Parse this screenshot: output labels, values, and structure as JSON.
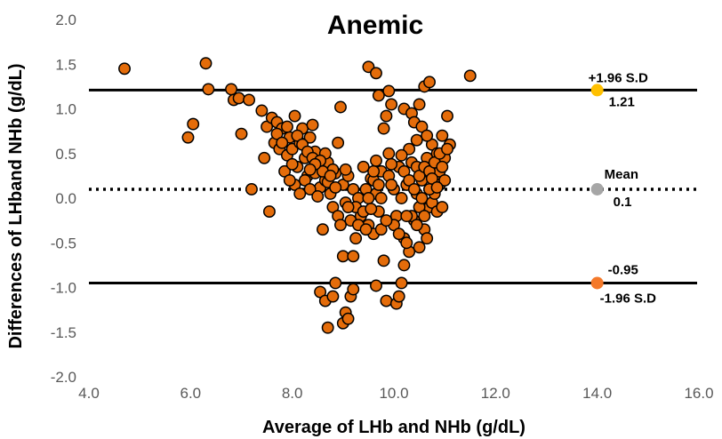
{
  "chart_data": {
    "type": "scatter",
    "title": "Anemic",
    "xlabel": "Average of LHb and NHb (g/dL)",
    "ylabel": "Differences of LHband NHb (g/dL)",
    "xlim": [
      4.0,
      16.0
    ],
    "ylim": [
      -2.0,
      2.0
    ],
    "xticks": [
      "4.0",
      "6.0",
      "8.0",
      "10.0",
      "12.0",
      "14.0",
      "16.0"
    ],
    "yticks": [
      "2.0",
      "1.5",
      "1.0",
      "0.5",
      "0.0",
      "-0.5",
      "-1.0",
      "-1.5",
      "-2.0"
    ],
    "grid": false,
    "marker_color": "#E46C0A",
    "marker_edge_color": "#000000",
    "reference_lines": [
      {
        "id": "upper",
        "y": 1.21,
        "style": "solid",
        "x_end": 14.0,
        "marker_color": "#FFC000",
        "label": "+1.96 S.D",
        "value_label": "1.21"
      },
      {
        "id": "mean",
        "y": 0.1,
        "style": "dotted",
        "x_end": 14.0,
        "marker_color": "#A6A6A6",
        "label": "Mean",
        "value_label": "0.1"
      },
      {
        "id": "lower",
        "y": -0.95,
        "style": "solid",
        "x_end": 14.0,
        "marker_color": "#F4792A",
        "label": "-1.96 S.D",
        "value_label": "-0.95"
      }
    ],
    "points": [
      [
        4.7,
        1.45
      ],
      [
        5.95,
        0.68
      ],
      [
        6.05,
        0.83
      ],
      [
        6.3,
        1.51
      ],
      [
        6.35,
        1.22
      ],
      [
        6.8,
        1.22
      ],
      [
        6.85,
        1.1
      ],
      [
        6.95,
        1.12
      ],
      [
        7.0,
        0.72
      ],
      [
        7.15,
        1.1
      ],
      [
        7.2,
        0.1
      ],
      [
        7.4,
        0.98
      ],
      [
        7.45,
        0.45
      ],
      [
        7.5,
        0.8
      ],
      [
        7.55,
        -0.15
      ],
      [
        7.6,
        0.9
      ],
      [
        7.65,
        0.62
      ],
      [
        7.7,
        0.85
      ],
      [
        7.75,
        0.55
      ],
      [
        7.8,
        0.78
      ],
      [
        7.85,
        0.3
      ],
      [
        7.9,
        0.48
      ],
      [
        7.95,
        0.68
      ],
      [
        8.0,
        0.55
      ],
      [
        8.05,
        0.92
      ],
      [
        8.1,
        0.35
      ],
      [
        8.15,
        0.62
      ],
      [
        8.2,
        0.78
      ],
      [
        8.25,
        0.45
      ],
      [
        8.3,
        0.25
      ],
      [
        8.35,
        0.68
      ],
      [
        8.4,
        0.82
      ],
      [
        8.45,
        0.52
      ],
      [
        8.5,
        0.35
      ],
      [
        8.55,
        0.12
      ],
      [
        8.6,
        -0.35
      ],
      [
        8.65,
        0.2
      ],
      [
        8.7,
        0.4
      ],
      [
        8.75,
        0.05
      ],
      [
        8.8,
        -0.1
      ],
      [
        8.85,
        0.28
      ],
      [
        8.9,
        0.62
      ],
      [
        8.95,
        1.02
      ],
      [
        9.0,
        0.15
      ],
      [
        9.05,
        -0.05
      ],
      [
        9.1,
        0.25
      ],
      [
        9.15,
        -0.25
      ],
      [
        9.2,
        0.1
      ],
      [
        9.25,
        -0.45
      ],
      [
        9.3,
        0.0
      ],
      [
        9.35,
        -0.2
      ],
      [
        9.4,
        0.35
      ],
      [
        9.45,
        0.1
      ],
      [
        9.5,
        -0.3
      ],
      [
        9.55,
        0.22
      ],
      [
        9.6,
        -0.4
      ],
      [
        9.65,
        0.05
      ],
      [
        9.7,
        -0.15
      ],
      [
        9.75,
        0.3
      ],
      [
        9.8,
        0.78
      ],
      [
        9.85,
        0.92
      ],
      [
        9.9,
        0.5
      ],
      [
        9.95,
        1.05
      ],
      [
        10.0,
        0.1
      ],
      [
        10.05,
        -0.2
      ],
      [
        10.1,
        0.35
      ],
      [
        10.15,
        0.0
      ],
      [
        10.2,
        -0.45
      ],
      [
        10.25,
        0.15
      ],
      [
        10.3,
        -0.6
      ],
      [
        10.35,
        0.4
      ],
      [
        10.4,
        -0.25
      ],
      [
        10.45,
        0.05
      ],
      [
        10.5,
        -0.55
      ],
      [
        10.55,
        0.2
      ],
      [
        10.6,
        -0.35
      ],
      [
        10.65,
        0.45
      ],
      [
        10.7,
        -0.1
      ],
      [
        10.75,
        0.6
      ],
      [
        10.8,
        0.25
      ],
      [
        10.85,
        0.5
      ],
      [
        10.9,
        0.3
      ],
      [
        10.95,
        0.7
      ],
      [
        11.0,
        0.45
      ],
      [
        11.05,
        0.92
      ],
      [
        11.1,
        0.6
      ],
      [
        11.5,
        1.37
      ],
      [
        9.5,
        1.47
      ],
      [
        9.65,
        1.4
      ],
      [
        10.6,
        1.25
      ],
      [
        10.7,
        1.3
      ],
      [
        10.2,
        1.0
      ],
      [
        10.35,
        0.95
      ],
      [
        10.5,
        1.05
      ],
      [
        9.7,
        1.15
      ],
      [
        9.9,
        1.2
      ],
      [
        10.4,
        0.85
      ],
      [
        10.55,
        0.8
      ],
      [
        10.65,
        0.7
      ],
      [
        10.45,
        0.65
      ],
      [
        10.3,
        0.55
      ],
      [
        10.15,
        0.48
      ],
      [
        8.55,
        -1.05
      ],
      [
        8.65,
        -1.15
      ],
      [
        8.7,
        -1.45
      ],
      [
        8.8,
        -1.1
      ],
      [
        8.85,
        -0.95
      ],
      [
        9.0,
        -1.4
      ],
      [
        9.05,
        -1.28
      ],
      [
        9.1,
        -1.35
      ],
      [
        9.15,
        -1.1
      ],
      [
        9.2,
        -1.02
      ],
      [
        9.0,
        -0.65
      ],
      [
        9.2,
        -0.65
      ],
      [
        9.25,
        -0.1
      ],
      [
        9.65,
        -0.98
      ],
      [
        9.8,
        -0.7
      ],
      [
        9.85,
        -1.15
      ],
      [
        10.05,
        -1.18
      ],
      [
        10.1,
        -1.1
      ],
      [
        10.15,
        -0.95
      ],
      [
        10.2,
        -0.75
      ],
      [
        10.25,
        -0.5
      ],
      [
        10.35,
        -0.2
      ],
      [
        10.45,
        -0.3
      ],
      [
        10.5,
        -0.1
      ],
      [
        10.6,
        -0.2
      ],
      [
        10.75,
        -0.05
      ],
      [
        10.8,
        0.05
      ],
      [
        10.85,
        -0.15
      ],
      [
        10.9,
        0.15
      ],
      [
        11.0,
        0.2
      ],
      [
        10.95,
        -0.1
      ],
      [
        10.7,
        0.1
      ],
      [
        10.55,
        0.0
      ],
      [
        8.0,
        0.38
      ],
      [
        8.05,
        0.15
      ],
      [
        8.15,
        0.05
      ],
      [
        8.25,
        0.2
      ],
      [
        8.35,
        0.1
      ],
      [
        8.45,
        0.28
      ],
      [
        8.5,
        0.02
      ],
      [
        8.7,
        0.18
      ],
      [
        8.8,
        0.32
      ],
      [
        8.9,
        -0.2
      ],
      [
        8.95,
        -0.3
      ],
      [
        9.05,
        0.32
      ],
      [
        9.1,
        -0.1
      ],
      [
        9.3,
        -0.3
      ],
      [
        9.4,
        -0.15
      ],
      [
        9.45,
        -0.35
      ],
      [
        9.5,
        0.0
      ],
      [
        9.55,
        -0.12
      ],
      [
        9.6,
        0.2
      ],
      [
        9.7,
        0.15
      ],
      [
        9.75,
        -0.35
      ],
      [
        9.9,
        0.25
      ],
      [
        9.95,
        0.38
      ],
      [
        10.0,
        -0.3
      ],
      [
        10.1,
        -0.4
      ],
      [
        10.2,
        0.3
      ],
      [
        10.25,
        -0.2
      ],
      [
        10.3,
        0.2
      ],
      [
        10.4,
        0.1
      ],
      [
        10.45,
        0.35
      ],
      [
        10.5,
        0.25
      ],
      [
        10.6,
        0.35
      ],
      [
        10.65,
        -0.45
      ],
      [
        10.7,
        0.3
      ],
      [
        10.75,
        0.22
      ],
      [
        10.8,
        0.4
      ],
      [
        10.85,
        0.12
      ],
      [
        10.9,
        0.5
      ],
      [
        10.95,
        0.35
      ],
      [
        11.05,
        0.55
      ],
      [
        9.6,
        0.3
      ],
      [
        9.65,
        0.42
      ],
      [
        9.75,
        0.0
      ],
      [
        9.85,
        -0.25
      ],
      [
        9.95,
        0.15
      ],
      [
        7.7,
        0.72
      ],
      [
        7.8,
        0.62
      ],
      [
        7.9,
        0.8
      ],
      [
        8.1,
        0.7
      ],
      [
        8.2,
        0.6
      ],
      [
        8.3,
        0.52
      ],
      [
        8.4,
        0.45
      ],
      [
        8.6,
        0.3
      ],
      [
        8.75,
        0.25
      ],
      [
        8.65,
        0.5
      ],
      [
        8.55,
        0.42
      ],
      [
        8.45,
        0.38
      ],
      [
        8.35,
        0.32
      ],
      [
        7.95,
        0.2
      ],
      [
        8.85,
        0.12
      ]
    ]
  }
}
